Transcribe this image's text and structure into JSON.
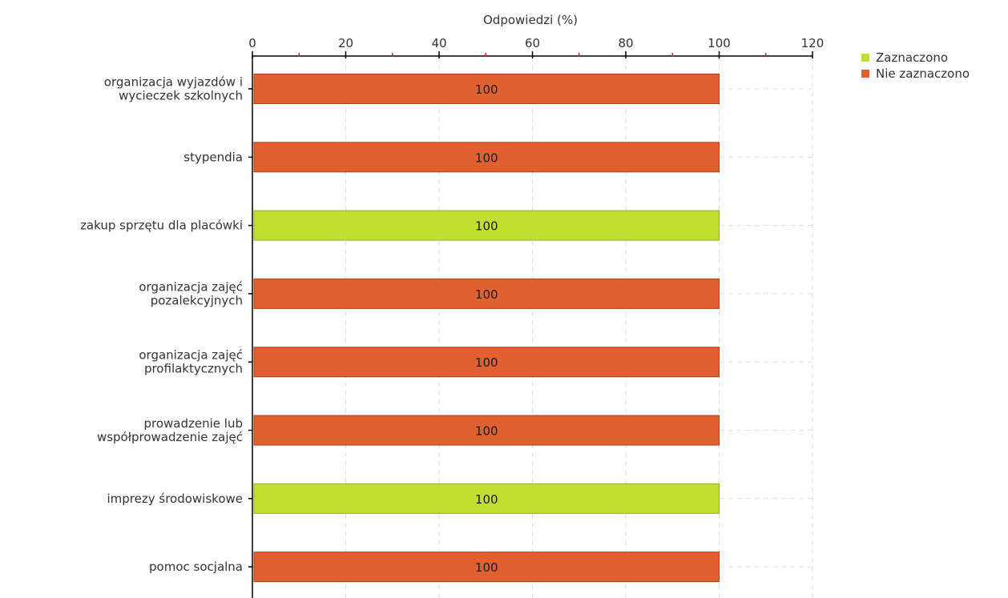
{
  "chart_data": {
    "type": "bar",
    "orientation": "horizontal",
    "xlabel": "Odpowiedzi (%)",
    "xlim": [
      0,
      120
    ],
    "xticks": [
      0,
      20,
      40,
      60,
      80,
      100,
      120
    ],
    "grid": true,
    "legend_position": "top-right",
    "series_meta": [
      {
        "name": "Zaznaczono",
        "color": "#bfe030",
        "stroke": "#8fb020"
      },
      {
        "name": "Nie zaznaczono",
        "color": "#e06030",
        "stroke": "#b04010"
      }
    ],
    "categories": [
      [
        "organizacja wyjazdów i",
        "wycieczek szkolnych"
      ],
      [
        "stypendia"
      ],
      [
        "zakup sprzętu dla placówki"
      ],
      [
        "organizacja zajęć",
        "pozalekcyjnych"
      ],
      [
        "organizacja zajęć",
        "profilaktycznych"
      ],
      [
        "prowadzenie lub",
        "współprowadzenie zajęć"
      ],
      [
        "imprezy środowiskowe"
      ],
      [
        "pomoc socjalna"
      ]
    ],
    "values": [
      100,
      100,
      100,
      100,
      100,
      100,
      100,
      100
    ],
    "bar_series": [
      "Nie zaznaczono",
      "Nie zaznaczono",
      "Zaznaczono",
      "Nie zaznaczono",
      "Nie zaznaczono",
      "Nie zaznaczono",
      "Zaznaczono",
      "Nie zaznaczono"
    ],
    "data_labels": [
      "100",
      "100",
      "100",
      "100",
      "100",
      "100",
      "100",
      "100"
    ]
  }
}
